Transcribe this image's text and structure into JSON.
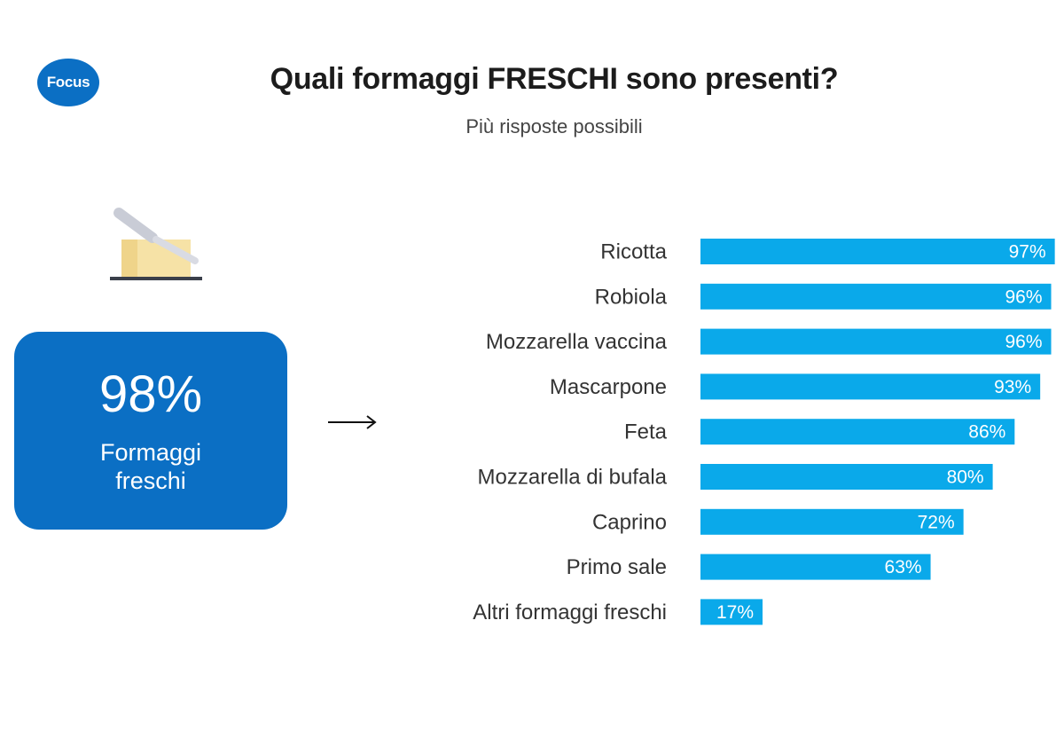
{
  "header": {
    "logo_text": "Focus",
    "title": "Quali formaggi FRESCHI sono presenti?",
    "subtitle": "Più risposte possibili"
  },
  "summary": {
    "value": "98%",
    "label": "Formaggi freschi"
  },
  "icons": {
    "cheese": "cheese-knife-icon",
    "arrow": "arrow-right-icon"
  },
  "colors": {
    "accent": "#0b6fc4",
    "bar": "#0aa9ea"
  },
  "chart_data": {
    "type": "bar",
    "orientation": "horizontal",
    "categories": [
      "Ricotta",
      "Robiola",
      "Mozzarella vaccina",
      "Mascarpone",
      "Feta",
      "Mozzarella di bufala",
      "Caprino",
      "Primo sale",
      "Altri formaggi freschi"
    ],
    "values": [
      97,
      96,
      96,
      93,
      86,
      80,
      72,
      63,
      17
    ],
    "value_labels": [
      "97%",
      "96%",
      "96%",
      "93%",
      "86%",
      "80%",
      "72%",
      "63%",
      "17%"
    ],
    "xlim": [
      0,
      100
    ],
    "grid": false,
    "legend": "none"
  }
}
